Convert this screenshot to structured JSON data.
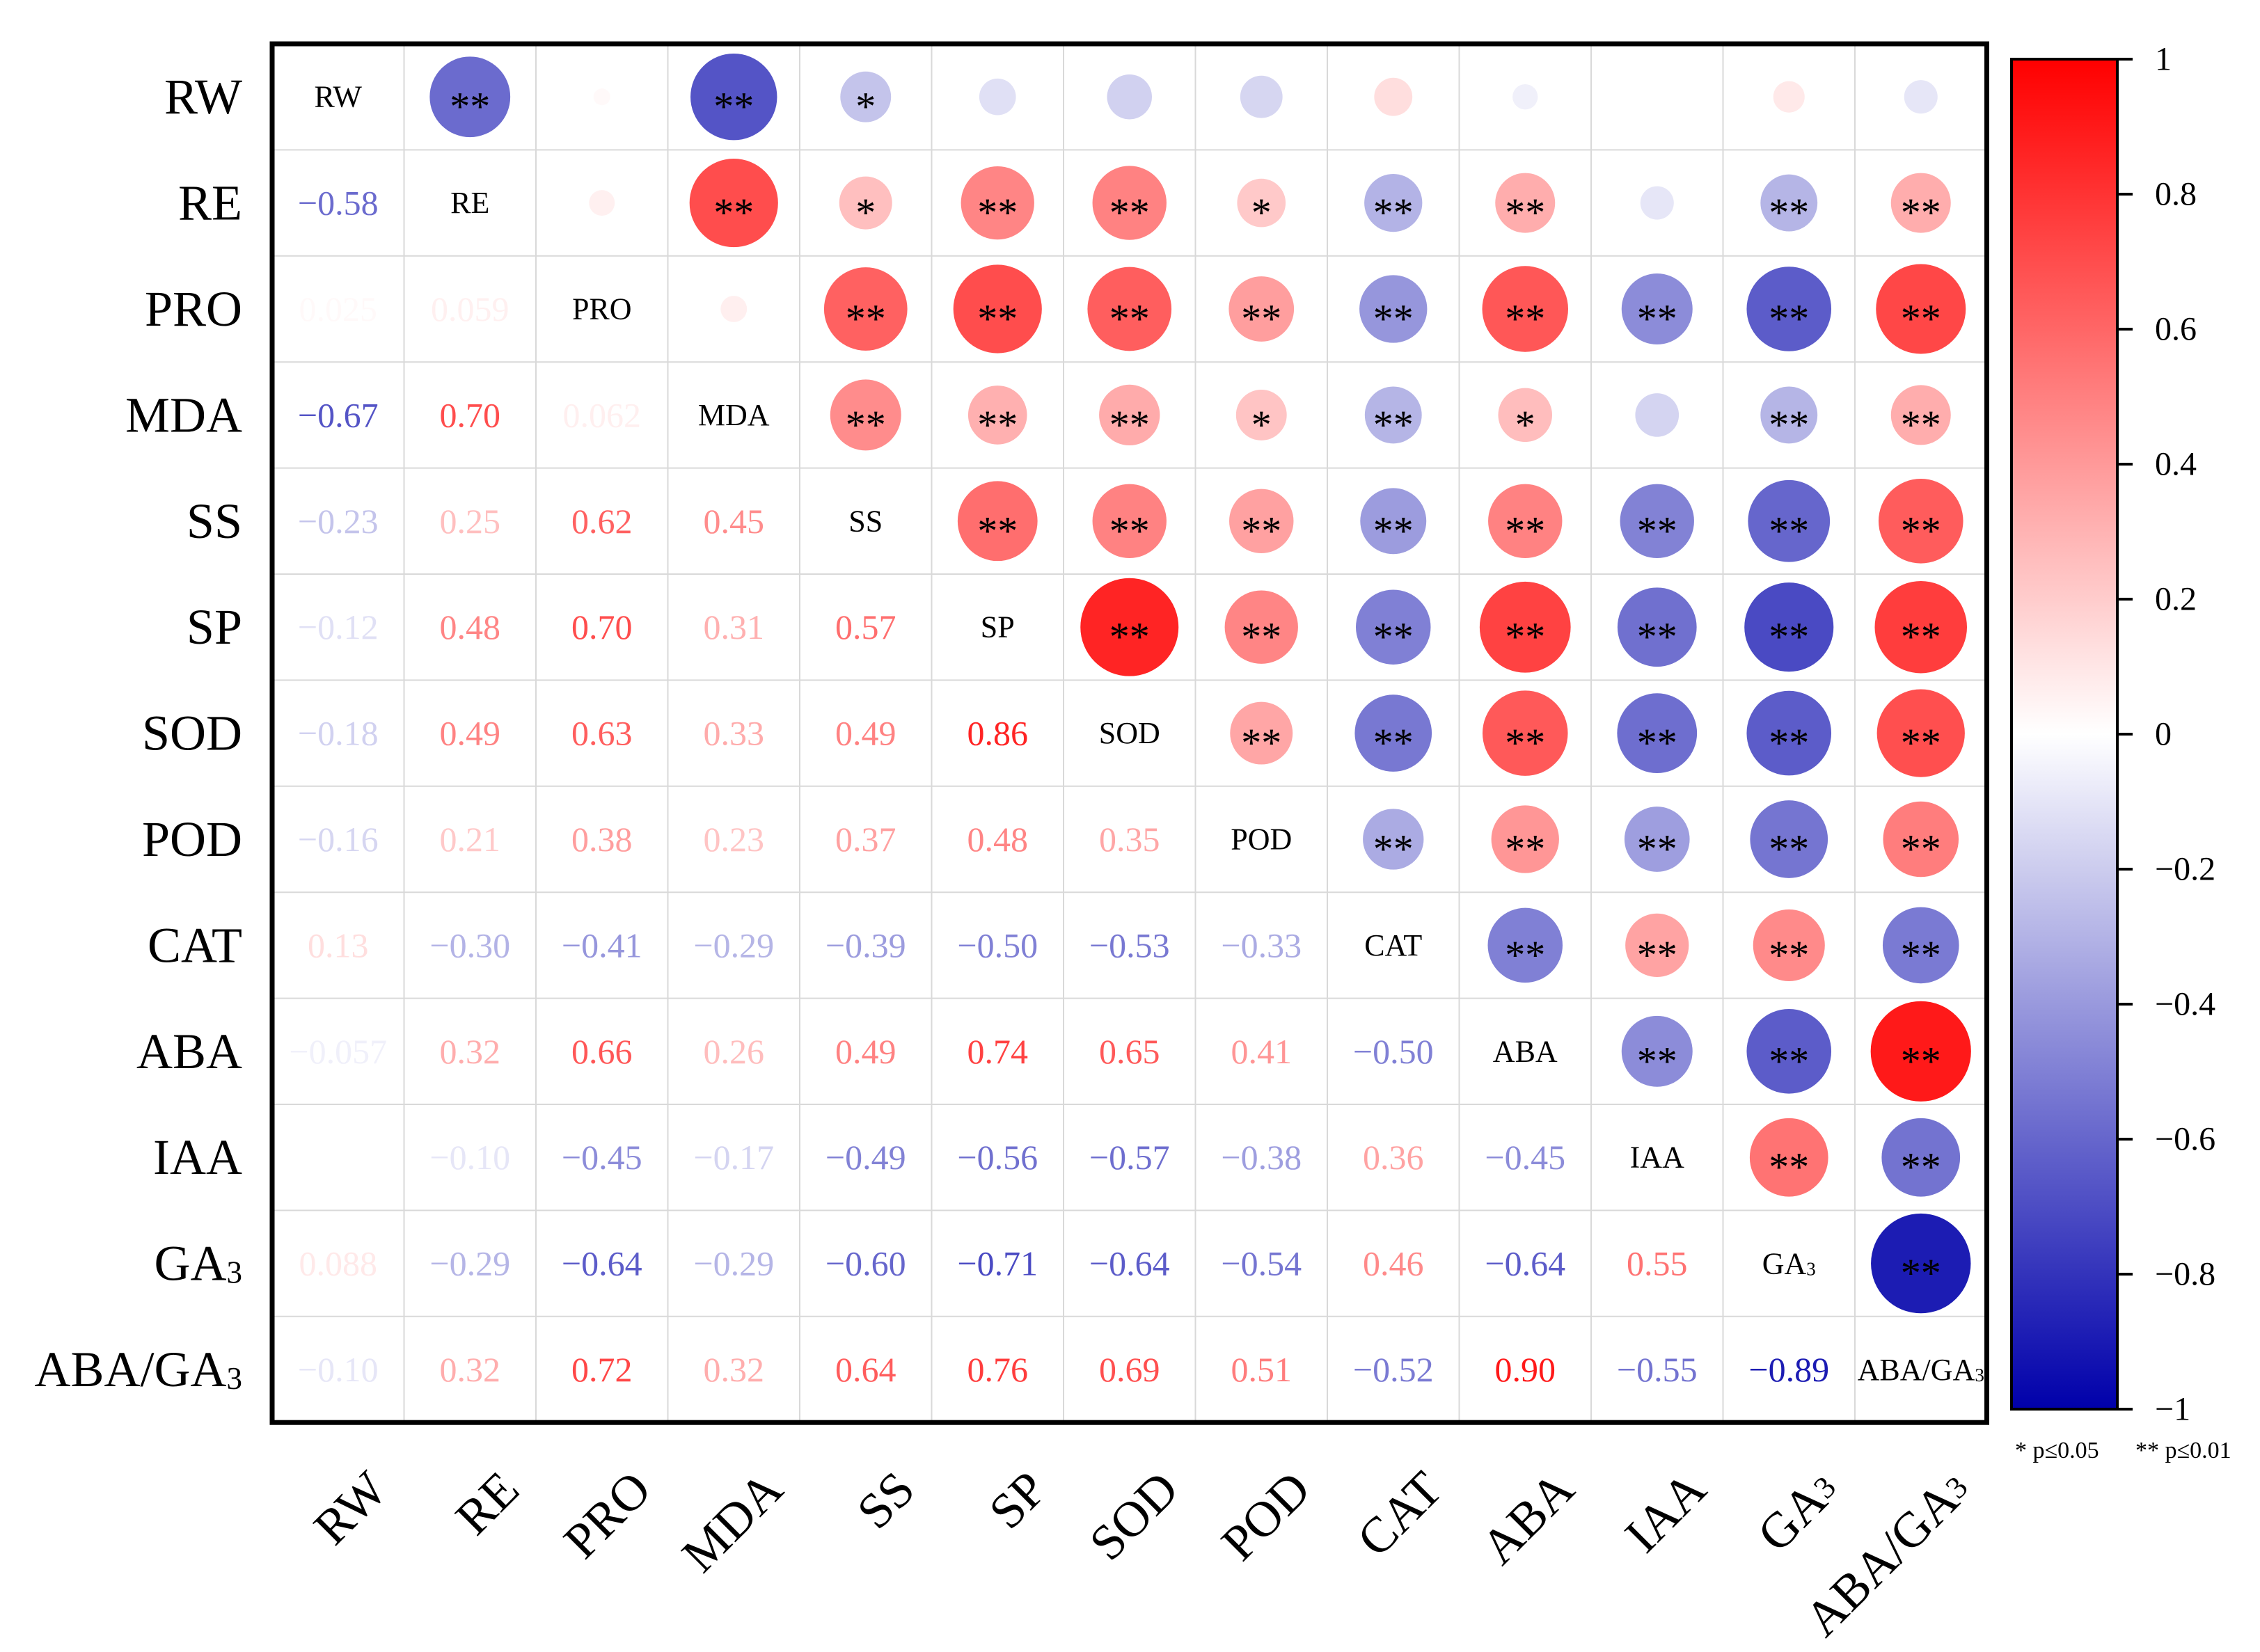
{
  "chart_data": {
    "type": "heatmap",
    "variables": [
      "RW",
      "RE",
      "PRO",
      "MDA",
      "SS",
      "SP",
      "SOD",
      "POD",
      "CAT",
      "ABA",
      "IAA",
      "GA₃",
      "ABA/GA₃"
    ],
    "lower_triangle": [
      [],
      [
        -0.58
      ],
      [
        0.025,
        0.059
      ],
      [
        -0.67,
        0.7,
        0.062
      ],
      [
        -0.23,
        0.25,
        0.62,
        0.45
      ],
      [
        -0.12,
        0.48,
        0.7,
        0.31,
        0.57
      ],
      [
        -0.18,
        0.49,
        0.63,
        0.33,
        0.49,
        0.86
      ],
      [
        -0.16,
        0.21,
        0.38,
        0.23,
        0.37,
        0.48,
        0.35
      ],
      [
        0.13,
        -0.3,
        -0.41,
        -0.29,
        -0.39,
        -0.5,
        -0.53,
        -0.33
      ],
      [
        -0.057,
        0.32,
        0.66,
        0.26,
        0.49,
        0.74,
        0.65,
        0.41,
        -0.5
      ],
      [
        null,
        -0.1,
        -0.45,
        -0.17,
        -0.49,
        -0.56,
        -0.57,
        -0.38,
        0.36,
        -0.45
      ],
      [
        0.088,
        -0.29,
        -0.64,
        -0.29,
        -0.6,
        -0.71,
        -0.64,
        -0.54,
        0.46,
        -0.64,
        0.55
      ],
      [
        -0.1,
        0.32,
        0.72,
        0.32,
        0.64,
        0.76,
        0.69,
        0.51,
        -0.52,
        0.9,
        -0.55,
        -0.89
      ]
    ],
    "significance": [
      [
        "",
        "**",
        "",
        "**",
        "*",
        "",
        "",
        "",
        "",
        "",
        "",
        "",
        ""
      ],
      [
        "",
        "",
        "",
        "**",
        "*",
        "**",
        "**",
        "*",
        "**",
        "**",
        "",
        "**",
        "**"
      ],
      [
        "",
        "",
        "",
        "",
        "**",
        "**",
        "**",
        "**",
        "**",
        "**",
        "**",
        "**",
        "**"
      ],
      [
        "",
        "",
        "",
        "",
        "**",
        "**",
        "**",
        "*",
        "**",
        "*",
        "",
        "**",
        "**"
      ],
      [
        "",
        "",
        "",
        "",
        "",
        "**",
        "**",
        "**",
        "**",
        "**",
        "**",
        "**",
        "**"
      ],
      [
        "",
        "",
        "",
        "",
        "",
        "",
        "**",
        "**",
        "**",
        "**",
        "**",
        "**",
        "**"
      ],
      [
        "",
        "",
        "",
        "",
        "",
        "",
        "",
        "**",
        "**",
        "**",
        "**",
        "**",
        "**"
      ],
      [
        "",
        "",
        "",
        "",
        "",
        "",
        "",
        "",
        "**",
        "**",
        "**",
        "**",
        "**"
      ],
      [
        "",
        "",
        "",
        "",
        "",
        "",
        "",
        "",
        "",
        "**",
        "**",
        "**",
        "**"
      ],
      [
        "",
        "",
        "",
        "",
        "",
        "",
        "",
        "",
        "",
        "",
        "**",
        "**",
        "**"
      ],
      [
        "",
        "",
        "",
        "",
        "",
        "",
        "",
        "",
        "",
        "",
        "",
        "**",
        "**"
      ],
      [
        "",
        "",
        "",
        "",
        "",
        "",
        "",
        "",
        "",
        "",
        "",
        "",
        "**"
      ],
      [
        "",
        "",
        "",
        "",
        "",
        "",
        "",
        "",
        "",
        "",
        "",
        "",
        ""
      ]
    ],
    "colorbar": {
      "min": -1,
      "max": 1,
      "ticks": [
        1,
        0.8,
        0.6,
        0.4,
        0.2,
        0,
        -0.2,
        -0.4,
        -0.6,
        -0.8,
        -1
      ],
      "tick_labels": [
        "1",
        "0.8",
        "0.6",
        "0.4",
        "0.2",
        "0",
        "−0.2",
        "−0.4",
        "−0.6",
        "−0.8",
        "−1"
      ],
      "colors": {
        "negative": "#0000aa",
        "zero": "#ffffff",
        "positive": "#ff0000"
      }
    },
    "legend": {
      "single_star": "* p≤0.05",
      "double_star": "** p≤0.01"
    },
    "grid": true
  }
}
